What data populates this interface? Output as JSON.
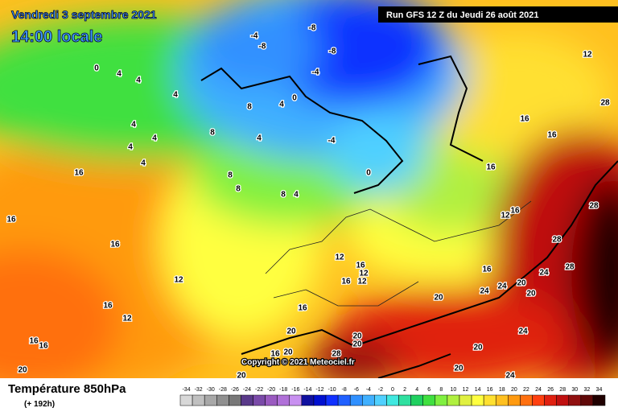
{
  "header": {
    "date": "Vendredi 3 septembre 2021",
    "time": "14:00 locale",
    "run": "Run GFS 12 Z du Jeudi 26 août 2021"
  },
  "map": {
    "copyright": "Copyright © 2021 Meteociel.fr",
    "labels": [
      -8,
      -4,
      -8,
      -4,
      -8,
      -4,
      0,
      4,
      0,
      0,
      4,
      4,
      4,
      4,
      4,
      4,
      4,
      8,
      8,
      4,
      8,
      8,
      8,
      4,
      16,
      16,
      16,
      12,
      16,
      12,
      16,
      16,
      20,
      12,
      16,
      12,
      16,
      12,
      16,
      20,
      20,
      20,
      16,
      20,
      28,
      20,
      20,
      20,
      24,
      24,
      20,
      24,
      24,
      20,
      20,
      24,
      28,
      28,
      28,
      16,
      16,
      12,
      16,
      16,
      12,
      28,
      16
    ]
  },
  "legend": {
    "title": "Température 850hPa",
    "lead": "(+ 192h)",
    "scale": [
      {
        "value": -34,
        "color": "#d8d8d8"
      },
      {
        "value": -32,
        "color": "#c0c0c0"
      },
      {
        "value": -30,
        "color": "#a8a8a8"
      },
      {
        "value": -28,
        "color": "#909090"
      },
      {
        "value": -26,
        "color": "#787878"
      },
      {
        "value": -24,
        "color": "#5a3a8a"
      },
      {
        "value": -22,
        "color": "#7a4aa8"
      },
      {
        "value": -20,
        "color": "#9a5ac0"
      },
      {
        "value": -18,
        "color": "#b070d8"
      },
      {
        "value": -16,
        "color": "#c890f0"
      },
      {
        "value": -14,
        "color": "#1010a0"
      },
      {
        "value": -12,
        "color": "#0010d0"
      },
      {
        "value": -10,
        "color": "#1030ff"
      },
      {
        "value": -8,
        "color": "#2060ff"
      },
      {
        "value": -6,
        "color": "#3090ff"
      },
      {
        "value": -4,
        "color": "#40b0ff"
      },
      {
        "value": -2,
        "color": "#50d0ff"
      },
      {
        "value": 0,
        "color": "#40e8e0"
      },
      {
        "value": 2,
        "color": "#30e0a0"
      },
      {
        "value": 4,
        "color": "#20d060"
      },
      {
        "value": 6,
        "color": "#40e040"
      },
      {
        "value": 8,
        "color": "#80f040"
      },
      {
        "value": 10,
        "color": "#b0f040"
      },
      {
        "value": 12,
        "color": "#e0f040"
      },
      {
        "value": 14,
        "color": "#ffff40"
      },
      {
        "value": 16,
        "color": "#ffe030"
      },
      {
        "value": 18,
        "color": "#ffc020"
      },
      {
        "value": 20,
        "color": "#ff9a10"
      },
      {
        "value": 22,
        "color": "#ff7010"
      },
      {
        "value": 24,
        "color": "#ff4010"
      },
      {
        "value": 26,
        "color": "#e02010"
      },
      {
        "value": 28,
        "color": "#c01010"
      },
      {
        "value": 30,
        "color": "#901010"
      },
      {
        "value": 32,
        "color": "#600808"
      },
      {
        "value": 34,
        "color": "#200000"
      }
    ]
  }
}
